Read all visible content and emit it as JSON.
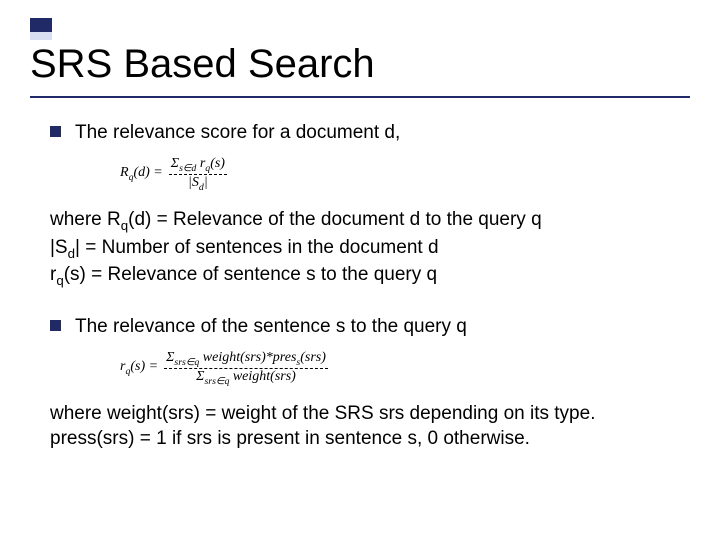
{
  "accent": {
    "dark": "#1f2a66",
    "light": "#d9dff2"
  },
  "title": "SRS Based Search",
  "bullet1": "The relevance score for a document d,",
  "formula1": {
    "lhs": "R",
    "lhs_sub": "q",
    "lhs_arg": "(d) =",
    "num_prefix": "Σ",
    "num_sub": "s∈d",
    "num_body": " r",
    "num_body_sub": "q",
    "num_body_arg": "(s)",
    "den": "|S",
    "den_sub": "d",
    "den_post": "|"
  },
  "defs1_a_pre": "where R",
  "defs1_a_sub": "q",
  "defs1_a_post": "(d) = Relevance of the document d to the query q",
  "defs1_b_pre": "|S",
  "defs1_b_sub": "d",
  "defs1_b_post": "| = Number of sentences in the document d",
  "defs1_c_pre": "r",
  "defs1_c_sub": "q",
  "defs1_c_post": "(s) = Relevance of sentence s to the query q",
  "bullet2": "The relevance of the sentence s to the query q",
  "formula2": {
    "lhs": "r",
    "lhs_sub": "q",
    "lhs_arg": "(s) =",
    "num_prefix": "Σ",
    "num_sub": "srs∈q",
    "num_body": " weight(srs)*pres",
    "num_body_sub": "s",
    "num_body_arg": "(srs)",
    "den_prefix": "Σ",
    "den_sub": "srs∈q",
    "den_body": " weight(srs)"
  },
  "defs2_a": "where weight(srs) = weight of the SRS srs depending on its type.",
  "defs2_b": "press(srs) = 1 if srs is present in sentence s, 0 otherwise."
}
